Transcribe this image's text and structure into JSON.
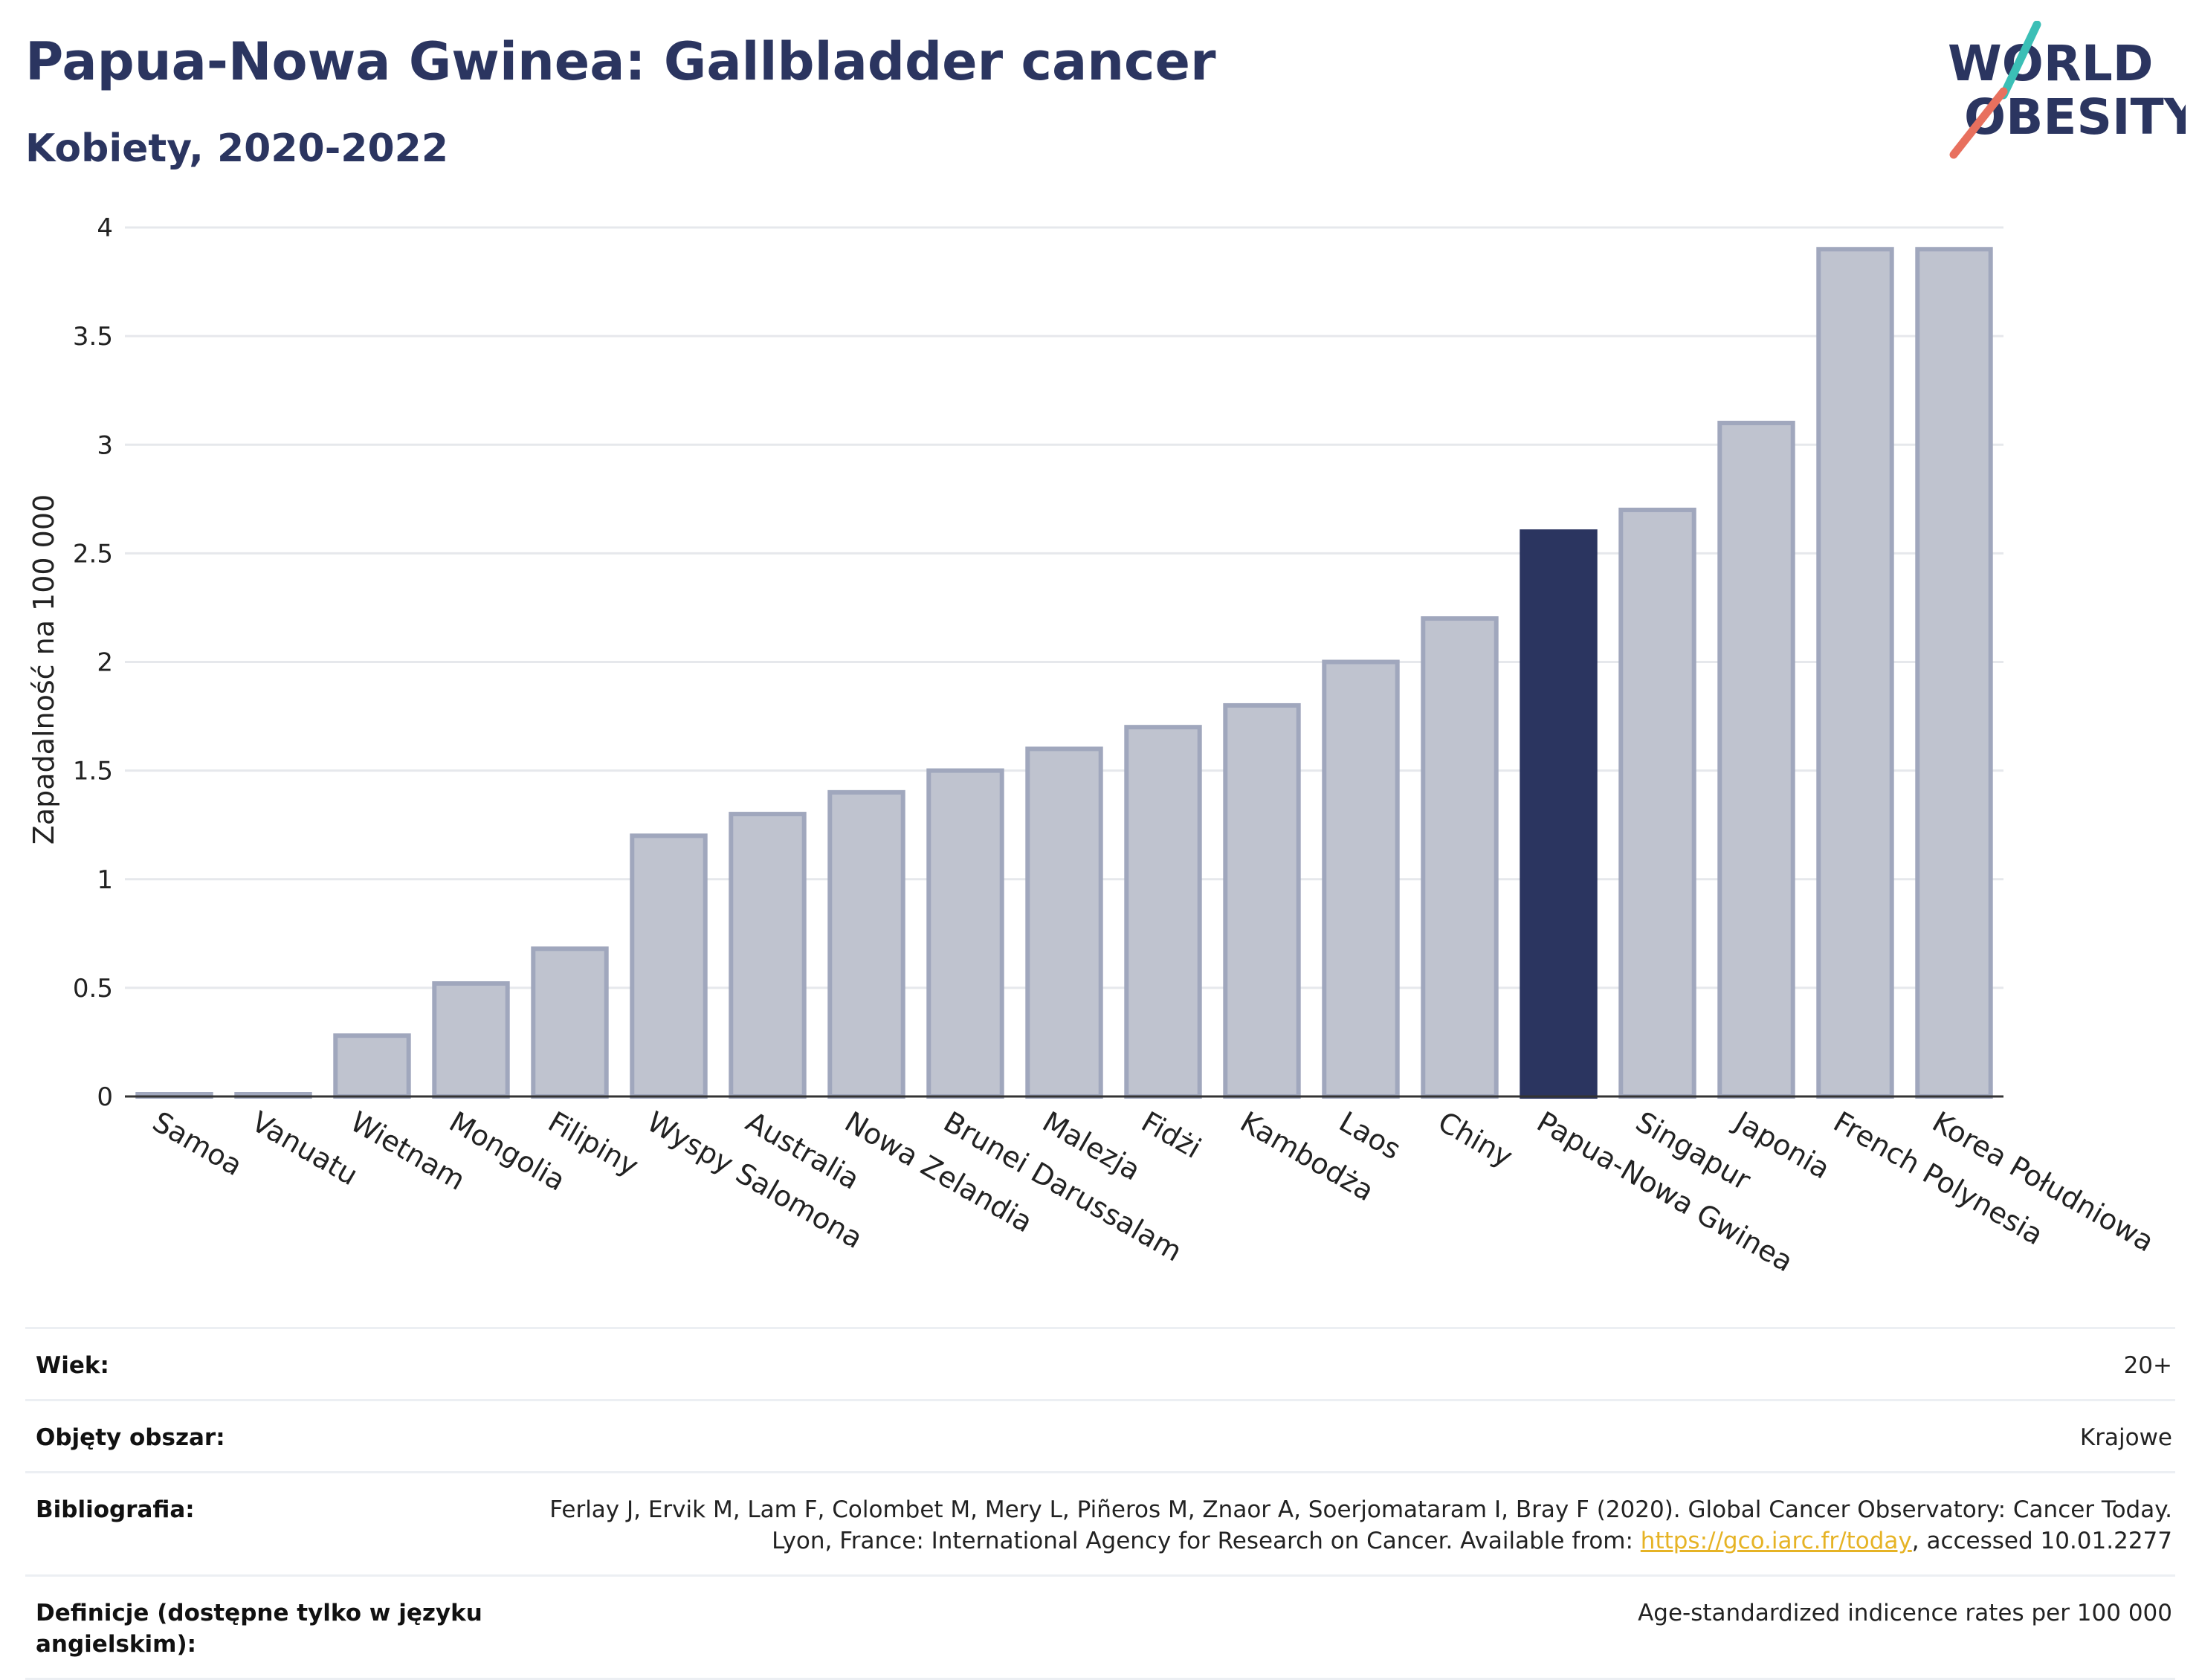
{
  "header": {
    "title": "Papua-Nowa Gwinea: Gallbladder cancer",
    "subtitle": "Kobiety, 2020-2022"
  },
  "logo": {
    "line1": "WORLD",
    "line2": "OBESITY",
    "accent_teal": "#3bbfb6",
    "accent_coral": "#e8705e"
  },
  "chart_data": {
    "type": "bar",
    "title": "Papua-Nowa Gwinea: Gallbladder cancer",
    "subtitle": "Kobiety, 2020-2022",
    "ylabel": "Zapadalność na 100 000",
    "xlabel": "",
    "ylim": [
      0,
      4
    ],
    "yticks": [
      0,
      0.5,
      1,
      1.5,
      2,
      2.5,
      3,
      3.5,
      4
    ],
    "ytick_labels": [
      "0",
      "0.5",
      "1",
      "1.5",
      "2",
      "2.5",
      "3",
      "3.5",
      "4"
    ],
    "grid": true,
    "highlight_category": "Papua-Nowa Gwinea",
    "colors": {
      "bar": "#bfc3cf",
      "bar_border": "#a0a7bd",
      "highlight": "#2b3560",
      "grid": "#e6e8ec",
      "axis": "#333333"
    },
    "categories": [
      "Samoa",
      "Vanuatu",
      "Wietnam",
      "Mongolia",
      "Filipiny",
      "Wyspy Salomona",
      "Australia",
      "Nowa Zelandia",
      "Brunei Darussalam",
      "Malezja",
      "Fidżi",
      "Kambodża",
      "Laos",
      "Chiny",
      "Papua-Nowa Gwinea",
      "Singapur",
      "Japonia",
      "French Polynesia",
      "Korea Południowa"
    ],
    "values": [
      0.01,
      0.01,
      0.28,
      0.52,
      0.68,
      1.2,
      1.3,
      1.4,
      1.5,
      1.6,
      1.7,
      1.8,
      2.0,
      2.2,
      2.6,
      2.7,
      3.1,
      3.9,
      3.9
    ]
  },
  "meta": [
    {
      "label": "Wiek:",
      "value": "20+"
    },
    {
      "label": "Objęty obszar:",
      "value": "Krajowe"
    },
    {
      "label": "Bibliografia:",
      "value_prefix": "Ferlay J, Ervik M, Lam F, Colombet M, Mery L, Piñeros M, Znaor A, Soerjomataram I, Bray F (2020). Global Cancer Observatory: Cancer Today. Lyon, France: International Agency for Research on Cancer. Available from: ",
      "link": "https://gco.iarc.fr/today",
      "value_suffix": ", accessed 10.01.2277"
    },
    {
      "label": "Definicje (dostępne tylko w języku angielskim):",
      "value": "Age-standardized indicence rates per 100 000"
    }
  ]
}
